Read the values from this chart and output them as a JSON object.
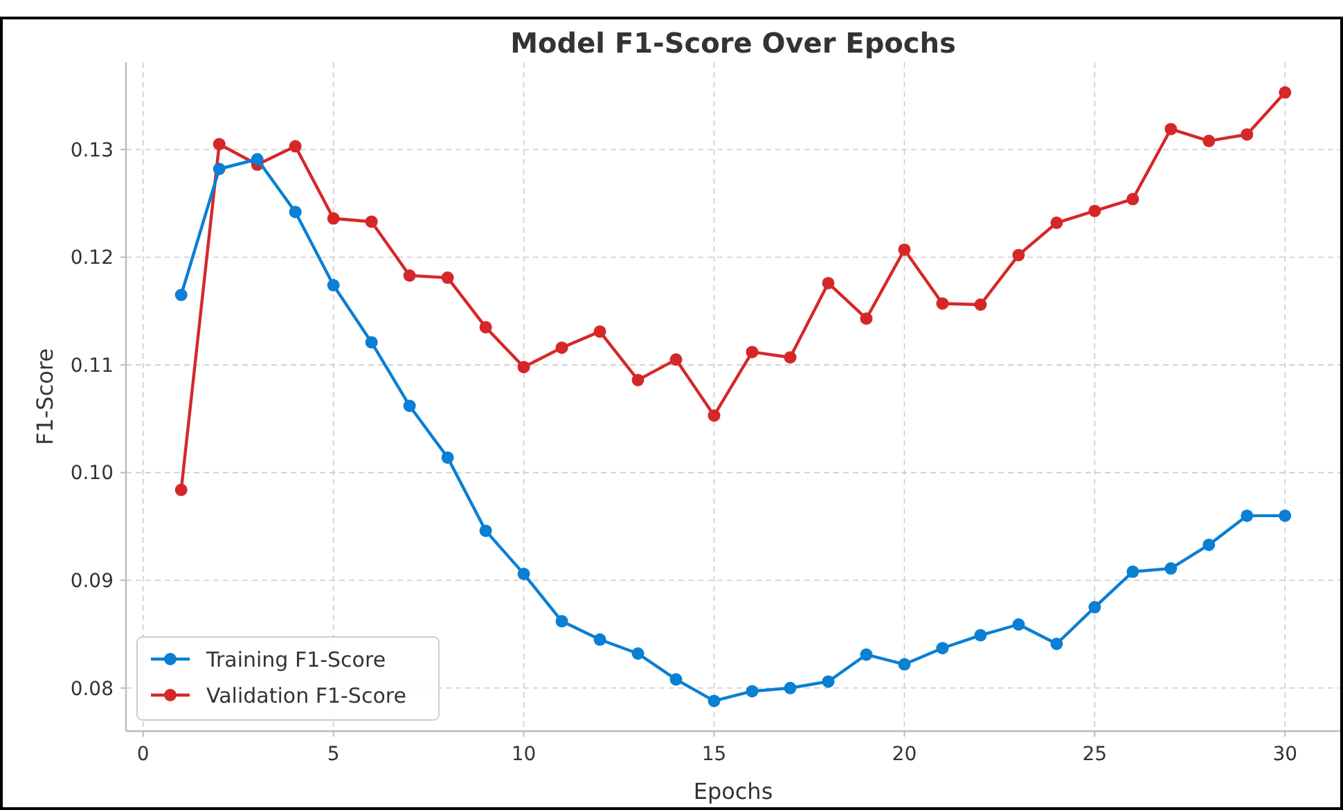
{
  "chart_data": {
    "type": "line",
    "title": "Model F1-Score Over Epochs",
    "xlabel": "Epochs",
    "ylabel": "F1-Score",
    "x": [
      1,
      2,
      3,
      4,
      5,
      6,
      7,
      8,
      9,
      10,
      11,
      12,
      13,
      14,
      15,
      16,
      17,
      18,
      19,
      20,
      21,
      22,
      23,
      24,
      25,
      26,
      27,
      28,
      29,
      30
    ],
    "series": [
      {
        "name": "Training F1-Score",
        "color": "#0a7fd4",
        "values": [
          0.1165,
          0.1282,
          0.1291,
          0.1242,
          0.1174,
          0.1121,
          0.1062,
          0.1014,
          0.0946,
          0.0906,
          0.0862,
          0.0845,
          0.0832,
          0.0808,
          0.0788,
          0.0797,
          0.08,
          0.0806,
          0.0831,
          0.0822,
          0.0837,
          0.0849,
          0.0859,
          0.0841,
          0.0875,
          0.0908,
          0.0911,
          0.0933,
          0.096,
          0.096
        ]
      },
      {
        "name": "Validation F1-Score",
        "color": "#d62728",
        "values": [
          0.0984,
          0.1305,
          0.1286,
          0.1303,
          0.1236,
          0.1233,
          0.1183,
          0.1181,
          0.1135,
          0.1098,
          0.1116,
          0.1131,
          0.1086,
          0.1105,
          0.1053,
          0.1112,
          0.1107,
          0.1176,
          0.1143,
          0.1207,
          0.1157,
          0.1156,
          0.1202,
          0.1232,
          0.1243,
          0.1254,
          0.1319,
          0.1308,
          0.1314,
          0.1353
        ]
      }
    ],
    "xlim": [
      -0.45,
      31.45
    ],
    "xticks": [
      0,
      5,
      10,
      15,
      20,
      25,
      30
    ],
    "ylim": [
      0.076,
      0.1381
    ],
    "yticks": [
      {
        "value": 0.08,
        "label": "0.08"
      },
      {
        "value": 0.09,
        "label": "0.09"
      },
      {
        "value": 0.1,
        "label": "0.10"
      },
      {
        "value": 0.11,
        "label": "0.11"
      },
      {
        "value": 0.12,
        "label": "0.12"
      },
      {
        "value": 0.13,
        "label": "0.13"
      }
    ],
    "grid": true,
    "legend": "bottom left",
    "marker": "circle",
    "line_style": "solid"
  }
}
